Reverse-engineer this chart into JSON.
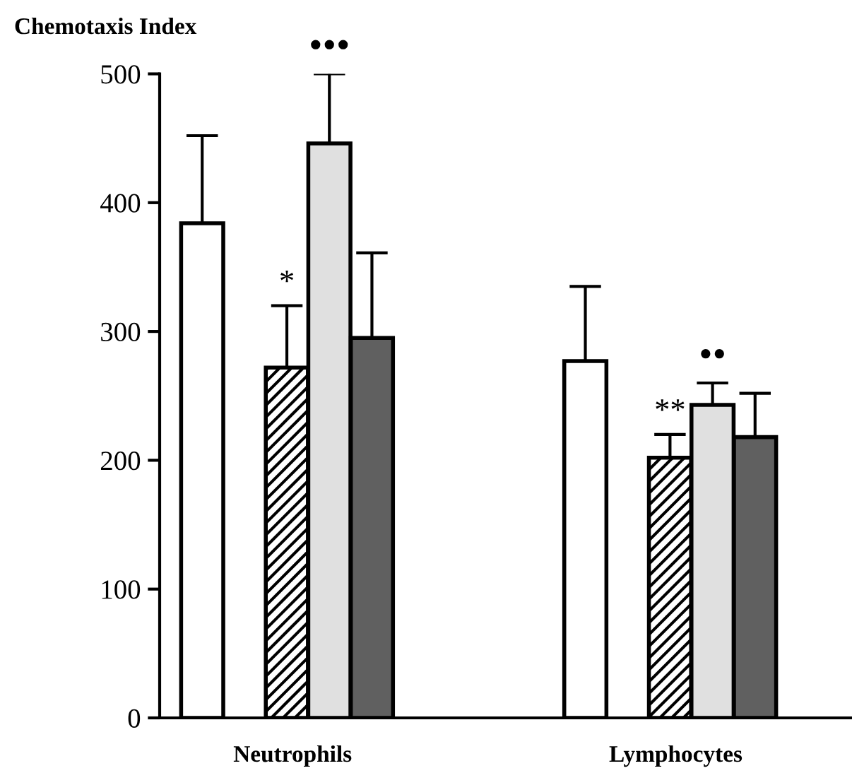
{
  "chart_data": {
    "type": "bar",
    "ylabel": "Chemotaxis Index",
    "categories": [
      "Neutrophils",
      "Lymphocytes"
    ],
    "series": [
      {
        "color": "#ffffff",
        "values": [
          384,
          277
        ],
        "errors": [
          [
            384,
            452
          ],
          [
            277,
            335
          ]
        ]
      },
      {
        "color": "#000000",
        "values": [
          272,
          202
        ],
        "errors": [
          [
            272,
            320
          ],
          [
            202,
            220
          ]
        ]
      },
      {
        "color": "#e0e0e0",
        "values": [
          446,
          243
        ],
        "errors": [
          [
            446,
            500
          ],
          [
            243,
            260
          ]
        ]
      },
      {
        "color": "#606060",
        "values": [
          295,
          218
        ],
        "errors": [
          [
            295,
            361
          ],
          [
            218,
            252
          ]
        ]
      }
    ],
    "ylim": [
      0,
      500
    ],
    "yticks": [
      0,
      100,
      200,
      300,
      400,
      500
    ],
    "grid": false,
    "legend": false,
    "annotations": [
      {
        "text": "*",
        "x": "Neutrophils",
        "y": 320
      },
      "•••",
      {
        "text": "**",
        "x": "Lymphocytes",
        "y": 220
      },
      "••"
    ]
  }
}
